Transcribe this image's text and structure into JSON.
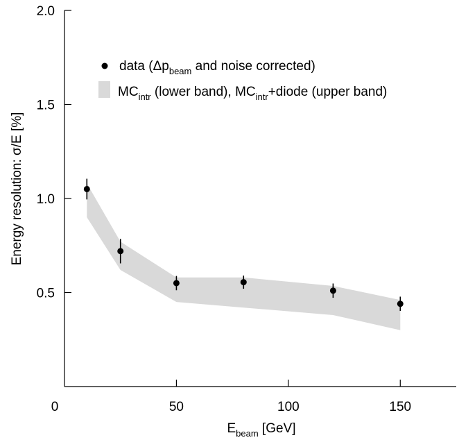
{
  "chart_data": {
    "type": "scatter",
    "xlabel": {
      "main": "E",
      "sub": "beam",
      "rest": " [GeV]"
    },
    "ylabel": "Energy resolution: σ/E [%]",
    "xlim": [
      0,
      175
    ],
    "ylim": [
      0,
      2.0
    ],
    "xticks": [
      0,
      50,
      100,
      150
    ],
    "yticks": [
      0.5,
      1.0,
      1.5,
      2.0
    ],
    "x_tick_labels": [
      "0",
      "50",
      "100",
      "150"
    ],
    "y_tick_labels": [
      "0.5",
      "1.0",
      "1.5",
      "2.0"
    ],
    "grid": false,
    "legend_position": "top-right",
    "legend": {
      "data": {
        "pre": "data (Δp",
        "sub": "beam",
        "post": " and noise corrected)"
      },
      "band": {
        "p1": "MC",
        "s1": "intr",
        "p2": " (lower band), MC",
        "s2": "intr",
        "p3": "+diode (upper band)"
      }
    },
    "series": [
      {
        "type": "scatter-errorbar",
        "x": [
          10,
          25,
          50,
          80,
          120,
          150
        ],
        "y": [
          1.05,
          0.72,
          0.55,
          0.555,
          0.51,
          0.44
        ],
        "yerr": [
          0.055,
          0.065,
          0.038,
          0.035,
          0.038,
          0.038
        ]
      },
      {
        "type": "band",
        "x": [
          10,
          25,
          50,
          80,
          120,
          150
        ],
        "lower": [
          0.9,
          0.62,
          0.45,
          0.42,
          0.38,
          0.3
        ],
        "upper": [
          1.08,
          0.77,
          0.58,
          0.58,
          0.535,
          0.46
        ]
      }
    ],
    "colors": {
      "band": "#d9d9d9",
      "points": "#000000",
      "axes": "#000000"
    }
  }
}
